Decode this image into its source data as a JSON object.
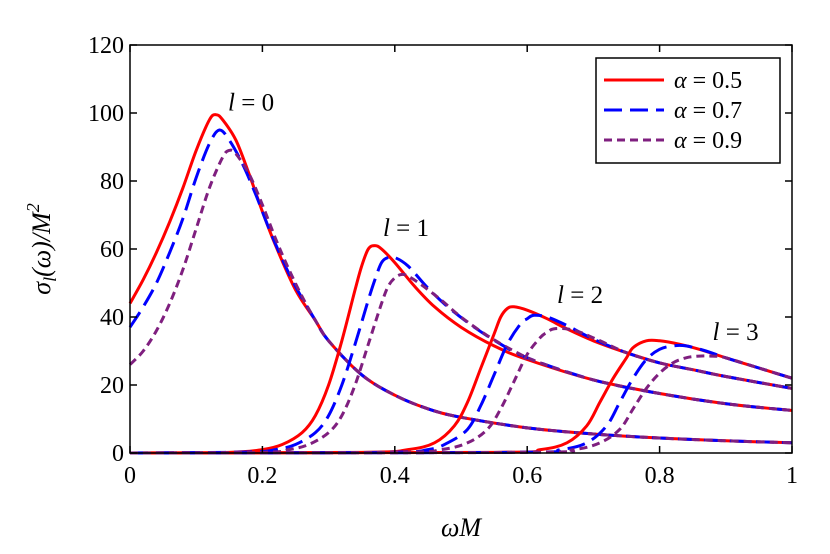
{
  "chart_data": {
    "type": "line",
    "title": "",
    "xlabel": "ωM",
    "ylabel": "σ_l(ω)/M²",
    "ylabel_parts": {
      "sigma": "σ",
      "sub": "l",
      "mid": "(ω)/M",
      "sup": "2"
    },
    "xlim": [
      0,
      1
    ],
    "ylim": [
      0,
      120
    ],
    "x_ticks": [
      "0",
      "0.2",
      "0.4",
      "0.6",
      "0.8",
      "1"
    ],
    "x_tick_values": [
      0,
      0.2,
      0.4,
      0.6,
      0.8,
      1
    ],
    "y_ticks": [
      "0",
      "20",
      "40",
      "60",
      "80",
      "100",
      "120"
    ],
    "y_tick_values": [
      0,
      20,
      40,
      60,
      80,
      100,
      120
    ],
    "grid": false,
    "legend_position": "top-right",
    "legend": [
      {
        "label": "α = 0.5",
        "color": "#ff0000",
        "dash": "solid"
      },
      {
        "label": "α = 0.7",
        "color": "#0000ff",
        "dash": "long-dash"
      },
      {
        "label": "α = 0.9",
        "color": "#7f1f7f",
        "dash": "short-dash"
      }
    ],
    "annotations": [
      {
        "var": "l",
        "rest": " = 0",
        "x": 0.13,
        "y": 99
      },
      {
        "var": "l",
        "rest": " = 1",
        "x": 0.37,
        "y": 62
      },
      {
        "var": "l",
        "rest": " = 2",
        "x": 0.63,
        "y": 43
      },
      {
        "var": "l",
        "rest": " = 3",
        "x": 0.88,
        "y": 32
      }
    ],
    "series": [
      {
        "alpha": 0.5,
        "l": 0,
        "color": "#ff0000",
        "dash": "solid",
        "points": [
          [
            0,
            44
          ],
          [
            0.02,
            51
          ],
          [
            0.04,
            59
          ],
          [
            0.06,
            68
          ],
          [
            0.08,
            78
          ],
          [
            0.1,
            89
          ],
          [
            0.12,
            98
          ],
          [
            0.13,
            99.5
          ],
          [
            0.14,
            98
          ],
          [
            0.16,
            92
          ],
          [
            0.18,
            82
          ],
          [
            0.2,
            71
          ],
          [
            0.22,
            61
          ],
          [
            0.25,
            48
          ],
          [
            0.28,
            39
          ],
          [
            0.3,
            33
          ],
          [
            0.35,
            23
          ],
          [
            0.4,
            17
          ],
          [
            0.45,
            13
          ],
          [
            0.5,
            10.5
          ],
          [
            0.6,
            7.4
          ],
          [
            0.7,
            5.6
          ],
          [
            0.8,
            4.4
          ],
          [
            0.9,
            3.6
          ],
          [
            1.0,
            3
          ]
        ]
      },
      {
        "alpha": 0.7,
        "l": 0,
        "color": "#0000ff",
        "dash": "long-dash",
        "points": [
          [
            0,
            37
          ],
          [
            0.02,
            43
          ],
          [
            0.04,
            50
          ],
          [
            0.06,
            59
          ],
          [
            0.08,
            69
          ],
          [
            0.1,
            81
          ],
          [
            0.12,
            91
          ],
          [
            0.135,
            95
          ],
          [
            0.15,
            92
          ],
          [
            0.17,
            85
          ],
          [
            0.19,
            76
          ],
          [
            0.21,
            66
          ],
          [
            0.23,
            57
          ],
          [
            0.25,
            49
          ],
          [
            0.28,
            39
          ],
          [
            0.3,
            33
          ],
          [
            0.35,
            23
          ],
          [
            0.4,
            17
          ],
          [
            0.45,
            13
          ],
          [
            0.5,
            10.5
          ],
          [
            0.6,
            7.4
          ],
          [
            0.7,
            5.6
          ],
          [
            0.8,
            4.4
          ],
          [
            0.9,
            3.6
          ],
          [
            1.0,
            3
          ]
        ]
      },
      {
        "alpha": 0.9,
        "l": 0,
        "color": "#7f1f7f",
        "dash": "short-dash",
        "points": [
          [
            0,
            26
          ],
          [
            0.02,
            30
          ],
          [
            0.04,
            36
          ],
          [
            0.06,
            44
          ],
          [
            0.08,
            54
          ],
          [
            0.1,
            66
          ],
          [
            0.12,
            78
          ],
          [
            0.14,
            87
          ],
          [
            0.15,
            89
          ],
          [
            0.16,
            88
          ],
          [
            0.18,
            82
          ],
          [
            0.2,
            73
          ],
          [
            0.22,
            63
          ],
          [
            0.24,
            54
          ],
          [
            0.26,
            46
          ],
          [
            0.28,
            39
          ],
          [
            0.3,
            33
          ],
          [
            0.35,
            23
          ],
          [
            0.4,
            17
          ],
          [
            0.45,
            13
          ],
          [
            0.5,
            10.5
          ],
          [
            0.6,
            7.4
          ],
          [
            0.7,
            5.6
          ],
          [
            0.8,
            4.4
          ],
          [
            0.9,
            3.6
          ],
          [
            1.0,
            3
          ]
        ]
      },
      {
        "alpha": 0.5,
        "l": 1,
        "color": "#ff0000",
        "dash": "solid",
        "points": [
          [
            0,
            0
          ],
          [
            0.15,
            0.2
          ],
          [
            0.2,
            1
          ],
          [
            0.23,
            2.5
          ],
          [
            0.26,
            6
          ],
          [
            0.28,
            11
          ],
          [
            0.3,
            20
          ],
          [
            0.32,
            33
          ],
          [
            0.34,
            48
          ],
          [
            0.35,
            55
          ],
          [
            0.36,
            60
          ],
          [
            0.37,
            61
          ],
          [
            0.38,
            60
          ],
          [
            0.4,
            56
          ],
          [
            0.43,
            49
          ],
          [
            0.46,
            43
          ],
          [
            0.5,
            37
          ],
          [
            0.55,
            31.5
          ],
          [
            0.6,
            27.5
          ],
          [
            0.7,
            21.5
          ],
          [
            0.8,
            17.5
          ],
          [
            0.9,
            14.5
          ],
          [
            1.0,
            12.5
          ]
        ]
      },
      {
        "alpha": 0.7,
        "l": 1,
        "color": "#0000ff",
        "dash": "long-dash",
        "points": [
          [
            0,
            0
          ],
          [
            0.18,
            0.3
          ],
          [
            0.22,
            1
          ],
          [
            0.25,
            2.5
          ],
          [
            0.28,
            6
          ],
          [
            0.3,
            11
          ],
          [
            0.32,
            20
          ],
          [
            0.34,
            32
          ],
          [
            0.36,
            45
          ],
          [
            0.37,
            51
          ],
          [
            0.38,
            56
          ],
          [
            0.39,
            57.5
          ],
          [
            0.4,
            57.5
          ],
          [
            0.42,
            55
          ],
          [
            0.45,
            48.5
          ],
          [
            0.48,
            43
          ],
          [
            0.52,
            37
          ],
          [
            0.56,
            32
          ],
          [
            0.6,
            28
          ],
          [
            0.7,
            21.5
          ],
          [
            0.8,
            17.5
          ],
          [
            0.9,
            14.5
          ],
          [
            1.0,
            12.5
          ]
        ]
      },
      {
        "alpha": 0.9,
        "l": 1,
        "color": "#7f1f7f",
        "dash": "short-dash",
        "points": [
          [
            0,
            0
          ],
          [
            0.2,
            0.2
          ],
          [
            0.24,
            1
          ],
          [
            0.27,
            2.5
          ],
          [
            0.3,
            6
          ],
          [
            0.32,
            11
          ],
          [
            0.34,
            20
          ],
          [
            0.36,
            32
          ],
          [
            0.38,
            44
          ],
          [
            0.39,
            49
          ],
          [
            0.4,
            51.5
          ],
          [
            0.41,
            52.5
          ],
          [
            0.42,
            52
          ],
          [
            0.44,
            49.5
          ],
          [
            0.47,
            45
          ],
          [
            0.5,
            40
          ],
          [
            0.54,
            34.5
          ],
          [
            0.58,
            30
          ],
          [
            0.62,
            26.5
          ],
          [
            0.7,
            21.5
          ],
          [
            0.8,
            17.5
          ],
          [
            0.9,
            14.5
          ],
          [
            1.0,
            12.5
          ]
        ]
      },
      {
        "alpha": 0.5,
        "l": 2,
        "color": "#ff0000",
        "dash": "solid",
        "points": [
          [
            0,
            0
          ],
          [
            0.35,
            0.2
          ],
          [
            0.42,
            1
          ],
          [
            0.46,
            3
          ],
          [
            0.49,
            8
          ],
          [
            0.51,
            15
          ],
          [
            0.53,
            25
          ],
          [
            0.55,
            35
          ],
          [
            0.56,
            40
          ],
          [
            0.57,
            42.5
          ],
          [
            0.58,
            43
          ],
          [
            0.6,
            42
          ],
          [
            0.63,
            39.5
          ],
          [
            0.66,
            36.5
          ],
          [
            0.7,
            33
          ],
          [
            0.75,
            29.5
          ],
          [
            0.8,
            26.5
          ],
          [
            0.85,
            24.5
          ],
          [
            0.9,
            22.5
          ],
          [
            1.0,
            19
          ]
        ]
      },
      {
        "alpha": 0.7,
        "l": 2,
        "color": "#0000ff",
        "dash": "long-dash",
        "points": [
          [
            0,
            0
          ],
          [
            0.38,
            0.2
          ],
          [
            0.45,
            1
          ],
          [
            0.48,
            3
          ],
          [
            0.51,
            7
          ],
          [
            0.53,
            14
          ],
          [
            0.55,
            23
          ],
          [
            0.57,
            32
          ],
          [
            0.59,
            38
          ],
          [
            0.6,
            39.5
          ],
          [
            0.61,
            40.5
          ],
          [
            0.63,
            40
          ],
          [
            0.66,
            37.5
          ],
          [
            0.7,
            33.5
          ],
          [
            0.75,
            29.5
          ],
          [
            0.8,
            26.5
          ],
          [
            0.85,
            24.5
          ],
          [
            0.9,
            22.5
          ],
          [
            1.0,
            19
          ]
        ]
      },
      {
        "alpha": 0.9,
        "l": 2,
        "color": "#7f1f7f",
        "dash": "short-dash",
        "points": [
          [
            0,
            0
          ],
          [
            0.4,
            0.2
          ],
          [
            0.47,
            1
          ],
          [
            0.51,
            3
          ],
          [
            0.54,
            7
          ],
          [
            0.56,
            13
          ],
          [
            0.58,
            21
          ],
          [
            0.6,
            29
          ],
          [
            0.62,
            34
          ],
          [
            0.63,
            35.5
          ],
          [
            0.64,
            36.5
          ],
          [
            0.66,
            36.5
          ],
          [
            0.68,
            35.5
          ],
          [
            0.71,
            33
          ],
          [
            0.75,
            29.5
          ],
          [
            0.8,
            26.5
          ],
          [
            0.85,
            24.5
          ],
          [
            0.9,
            22.5
          ],
          [
            1.0,
            19
          ]
        ]
      },
      {
        "alpha": 0.5,
        "l": 3,
        "color": "#ff0000",
        "dash": "solid",
        "points": [
          [
            0,
            0
          ],
          [
            0.55,
            0.2
          ],
          [
            0.62,
            1
          ],
          [
            0.66,
            3
          ],
          [
            0.69,
            8
          ],
          [
            0.71,
            15
          ],
          [
            0.73,
            22
          ],
          [
            0.75,
            28
          ],
          [
            0.76,
            31
          ],
          [
            0.78,
            33
          ],
          [
            0.8,
            33
          ],
          [
            0.83,
            32
          ],
          [
            0.86,
            30.5
          ],
          [
            0.9,
            28
          ],
          [
            0.95,
            25
          ],
          [
            1.0,
            22
          ]
        ]
      },
      {
        "alpha": 0.7,
        "l": 3,
        "color": "#0000ff",
        "dash": "long-dash",
        "points": [
          [
            0,
            0
          ],
          [
            0.58,
            0.2
          ],
          [
            0.65,
            1
          ],
          [
            0.69,
            3
          ],
          [
            0.72,
            8
          ],
          [
            0.74,
            15
          ],
          [
            0.76,
            22
          ],
          [
            0.78,
            27.5
          ],
          [
            0.8,
            30.5
          ],
          [
            0.82,
            31.5
          ],
          [
            0.84,
            31.5
          ],
          [
            0.87,
            30
          ],
          [
            0.9,
            28
          ],
          [
            0.95,
            25
          ],
          [
            1.0,
            22
          ]
        ]
      },
      {
        "alpha": 0.9,
        "l": 3,
        "color": "#7f1f7f",
        "dash": "short-dash",
        "points": [
          [
            0,
            0
          ],
          [
            0.6,
            0.2
          ],
          [
            0.67,
            1
          ],
          [
            0.71,
            3
          ],
          [
            0.74,
            7
          ],
          [
            0.76,
            13
          ],
          [
            0.78,
            19
          ],
          [
            0.8,
            23.5
          ],
          [
            0.82,
            26.5
          ],
          [
            0.84,
            28
          ],
          [
            0.86,
            28.5
          ],
          [
            0.88,
            28.5
          ],
          [
            0.9,
            28
          ],
          [
            0.95,
            25
          ],
          [
            1.0,
            22
          ]
        ]
      }
    ]
  }
}
